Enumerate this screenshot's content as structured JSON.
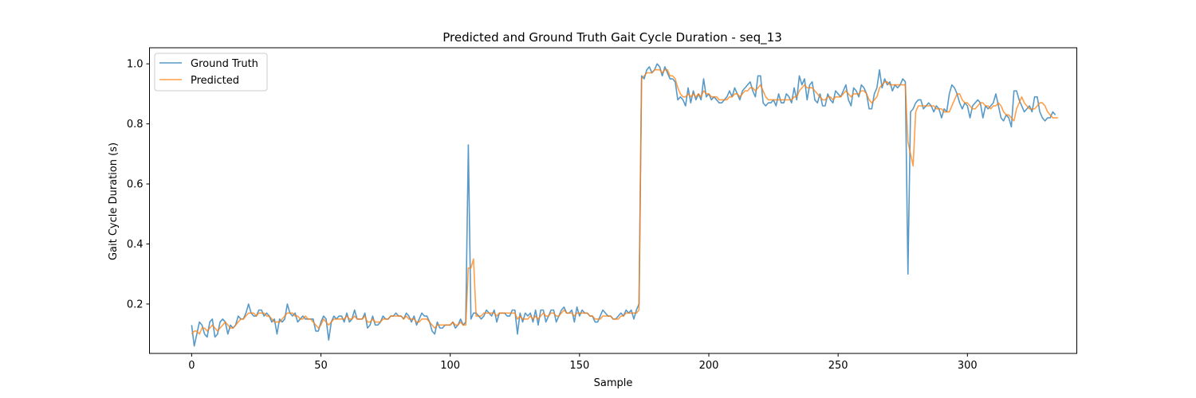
{
  "chart_data": {
    "type": "line",
    "title": "Predicted and Ground Truth Gait Cycle Duration - seq_13",
    "xlabel": "Sample",
    "ylabel": "Gait Cycle Duration (s)",
    "xlim": [
      -16.3,
      342.3
    ],
    "ylim": [
      0.0355,
      1.0535
    ],
    "xticks": [
      0,
      50,
      100,
      150,
      200,
      250,
      300
    ],
    "yticks": [
      0.2,
      0.4,
      0.6,
      0.8,
      1.0
    ],
    "ytick_labels": [
      "0.2",
      "0.4",
      "0.6",
      "0.8",
      "1.0"
    ],
    "grid": false,
    "legend_position": "upper-left",
    "series": [
      {
        "name": "Ground Truth",
        "color": "#1f77b4",
        "values": [
          0.13,
          0.06,
          0.1,
          0.14,
          0.13,
          0.1,
          0.09,
          0.14,
          0.15,
          0.09,
          0.1,
          0.14,
          0.15,
          0.14,
          0.1,
          0.13,
          0.12,
          0.13,
          0.16,
          0.15,
          0.15,
          0.17,
          0.2,
          0.17,
          0.16,
          0.16,
          0.18,
          0.18,
          0.16,
          0.17,
          0.16,
          0.14,
          0.15,
          0.1,
          0.15,
          0.14,
          0.15,
          0.2,
          0.17,
          0.16,
          0.17,
          0.14,
          0.15,
          0.16,
          0.15,
          0.15,
          0.15,
          0.15,
          0.11,
          0.11,
          0.14,
          0.16,
          0.15,
          0.08,
          0.14,
          0.16,
          0.15,
          0.16,
          0.16,
          0.14,
          0.17,
          0.14,
          0.15,
          0.18,
          0.15,
          0.15,
          0.15,
          0.17,
          0.12,
          0.13,
          0.16,
          0.13,
          0.13,
          0.14,
          0.16,
          0.15,
          0.15,
          0.16,
          0.16,
          0.17,
          0.16,
          0.16,
          0.15,
          0.17,
          0.16,
          0.14,
          0.16,
          0.13,
          0.15,
          0.17,
          0.16,
          0.16,
          0.14,
          0.11,
          0.1,
          0.14,
          0.12,
          0.12,
          0.13,
          0.13,
          0.13,
          0.14,
          0.12,
          0.13,
          0.15,
          0.13,
          0.14,
          0.73,
          0.15,
          0.17,
          0.17,
          0.16,
          0.15,
          0.16,
          0.18,
          0.17,
          0.16,
          0.18,
          0.14,
          0.17,
          0.17,
          0.17,
          0.16,
          0.16,
          0.18,
          0.18,
          0.1,
          0.17,
          0.14,
          0.17,
          0.16,
          0.17,
          0.14,
          0.18,
          0.13,
          0.18,
          0.18,
          0.14,
          0.16,
          0.18,
          0.18,
          0.14,
          0.16,
          0.18,
          0.19,
          0.17,
          0.17,
          0.18,
          0.14,
          0.19,
          0.16,
          0.18,
          0.17,
          0.17,
          0.16,
          0.16,
          0.14,
          0.14,
          0.16,
          0.18,
          0.17,
          0.16,
          0.16,
          0.15,
          0.15,
          0.16,
          0.17,
          0.16,
          0.18,
          0.17,
          0.18,
          0.15,
          0.18,
          0.2,
          0.96,
          0.95,
          0.98,
          0.99,
          0.97,
          0.98,
          1.0,
          0.99,
          0.96,
          0.99,
          0.97,
          0.95,
          0.95,
          0.94,
          0.88,
          0.89,
          0.88,
          0.86,
          0.92,
          0.87,
          0.91,
          0.88,
          0.9,
          0.88,
          0.95,
          0.89,
          0.9,
          0.88,
          0.89,
          0.88,
          0.87,
          0.87,
          0.88,
          0.89,
          0.91,
          0.89,
          0.92,
          0.9,
          0.88,
          0.91,
          0.92,
          0.93,
          0.94,
          0.91,
          0.89,
          0.96,
          0.96,
          0.87,
          0.86,
          0.87,
          0.87,
          0.88,
          0.86,
          0.9,
          0.87,
          0.87,
          0.9,
          0.89,
          0.87,
          0.92,
          0.88,
          0.96,
          0.93,
          0.95,
          0.88,
          0.93,
          0.94,
          0.88,
          0.87,
          0.9,
          0.86,
          0.86,
          0.9,
          0.88,
          0.87,
          0.91,
          0.9,
          0.89,
          0.91,
          0.93,
          0.88,
          0.86,
          0.92,
          0.91,
          0.89,
          0.93,
          0.92,
          0.9,
          0.85,
          0.85,
          0.9,
          0.92,
          0.98,
          0.92,
          0.95,
          0.93,
          0.94,
          0.91,
          0.93,
          0.92,
          0.93,
          0.95,
          0.94,
          0.3,
          0.84,
          0.85,
          0.87,
          0.88,
          0.88,
          0.85,
          0.86,
          0.87,
          0.86,
          0.84,
          0.86,
          0.85,
          0.82,
          0.85,
          0.84,
          0.9,
          0.93,
          0.92,
          0.9,
          0.87,
          0.85,
          0.87,
          0.86,
          0.82,
          0.86,
          0.87,
          0.88,
          0.87,
          0.82,
          0.86,
          0.85,
          0.86,
          0.87,
          0.9,
          0.86,
          0.82,
          0.81,
          0.83,
          0.82,
          0.79,
          0.91,
          0.91,
          0.88,
          0.86,
          0.84,
          0.85,
          0.86,
          0.84,
          0.89,
          0.89,
          0.84,
          0.82,
          0.81,
          0.82,
          0.82,
          0.84,
          0.83
        ]
      },
      {
        "name": "Predicted",
        "color": "#ff7f0e",
        "values": [
          0.1,
          0.11,
          0.11,
          0.1,
          0.12,
          0.12,
          0.11,
          0.12,
          0.13,
          0.12,
          0.11,
          0.12,
          0.13,
          0.14,
          0.13,
          0.12,
          0.12,
          0.13,
          0.14,
          0.15,
          0.15,
          0.16,
          0.17,
          0.17,
          0.17,
          0.16,
          0.17,
          0.17,
          0.17,
          0.16,
          0.16,
          0.15,
          0.14,
          0.14,
          0.14,
          0.15,
          0.16,
          0.17,
          0.17,
          0.17,
          0.16,
          0.16,
          0.15,
          0.15,
          0.16,
          0.15,
          0.15,
          0.14,
          0.13,
          0.12,
          0.13,
          0.15,
          0.14,
          0.13,
          0.14,
          0.15,
          0.15,
          0.15,
          0.15,
          0.15,
          0.16,
          0.15,
          0.15,
          0.16,
          0.15,
          0.15,
          0.15,
          0.16,
          0.14,
          0.14,
          0.15,
          0.14,
          0.14,
          0.14,
          0.15,
          0.15,
          0.15,
          0.16,
          0.16,
          0.16,
          0.16,
          0.16,
          0.15,
          0.16,
          0.15,
          0.15,
          0.15,
          0.14,
          0.14,
          0.15,
          0.15,
          0.15,
          0.14,
          0.13,
          0.12,
          0.13,
          0.13,
          0.13,
          0.13,
          0.13,
          0.13,
          0.14,
          0.13,
          0.13,
          0.14,
          0.13,
          0.13,
          0.32,
          0.32,
          0.35,
          0.16,
          0.16,
          0.16,
          0.17,
          0.17,
          0.17,
          0.17,
          0.17,
          0.16,
          0.17,
          0.17,
          0.17,
          0.17,
          0.17,
          0.17,
          0.17,
          0.15,
          0.16,
          0.15,
          0.15,
          0.15,
          0.16,
          0.15,
          0.16,
          0.15,
          0.16,
          0.17,
          0.16,
          0.16,
          0.17,
          0.17,
          0.16,
          0.16,
          0.17,
          0.18,
          0.17,
          0.17,
          0.17,
          0.16,
          0.17,
          0.17,
          0.17,
          0.17,
          0.17,
          0.16,
          0.16,
          0.15,
          0.15,
          0.15,
          0.16,
          0.16,
          0.16,
          0.16,
          0.15,
          0.15,
          0.15,
          0.16,
          0.16,
          0.17,
          0.17,
          0.17,
          0.17,
          0.17,
          0.18,
          0.95,
          0.96,
          0.97,
          0.97,
          0.97,
          0.98,
          0.98,
          0.98,
          0.97,
          0.98,
          0.98,
          0.96,
          0.96,
          0.95,
          0.92,
          0.9,
          0.89,
          0.89,
          0.9,
          0.89,
          0.9,
          0.89,
          0.9,
          0.89,
          0.91,
          0.9,
          0.9,
          0.89,
          0.89,
          0.89,
          0.88,
          0.88,
          0.88,
          0.88,
          0.89,
          0.89,
          0.9,
          0.9,
          0.89,
          0.9,
          0.91,
          0.91,
          0.92,
          0.92,
          0.91,
          0.92,
          0.93,
          0.91,
          0.89,
          0.88,
          0.88,
          0.88,
          0.88,
          0.88,
          0.88,
          0.88,
          0.88,
          0.88,
          0.88,
          0.89,
          0.89,
          0.91,
          0.92,
          0.93,
          0.92,
          0.92,
          0.92,
          0.91,
          0.9,
          0.89,
          0.88,
          0.88,
          0.89,
          0.89,
          0.88,
          0.89,
          0.89,
          0.89,
          0.9,
          0.91,
          0.9,
          0.89,
          0.9,
          0.9,
          0.9,
          0.91,
          0.91,
          0.9,
          0.88,
          0.87,
          0.88,
          0.89,
          0.92,
          0.93,
          0.94,
          0.94,
          0.93,
          0.93,
          0.93,
          0.93,
          0.93,
          0.93,
          0.93,
          0.74,
          0.7,
          0.66,
          0.84,
          0.86,
          0.86,
          0.86,
          0.86,
          0.86,
          0.86,
          0.86,
          0.85,
          0.85,
          0.85,
          0.84,
          0.84,
          0.84,
          0.86,
          0.88,
          0.9,
          0.9,
          0.88,
          0.87,
          0.87,
          0.86,
          0.85,
          0.85,
          0.86,
          0.87,
          0.87,
          0.86,
          0.86,
          0.85,
          0.86,
          0.86,
          0.87,
          0.86,
          0.84,
          0.83,
          0.83,
          0.82,
          0.81,
          0.85,
          0.87,
          0.89,
          0.87,
          0.86,
          0.85,
          0.85,
          0.85,
          0.86,
          0.87,
          0.87,
          0.86,
          0.84,
          0.83,
          0.82,
          0.82,
          0.82
        ]
      }
    ]
  }
}
